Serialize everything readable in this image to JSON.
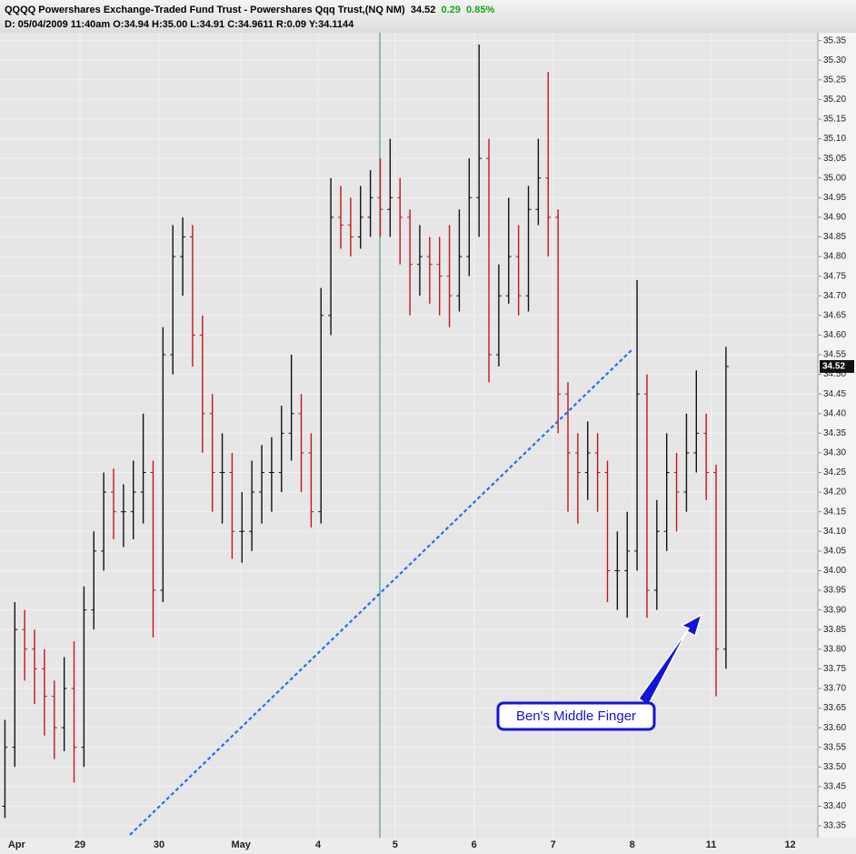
{
  "chart_data": {
    "type": "ohlc",
    "header": {
      "title": "QQQQ Powershares Exchange-Traded Fund Trust - Powershares Qqq Trust,(NQ NM)",
      "last": 34.52,
      "change": 0.29,
      "change_pct": "0.85%",
      "details": "D: 05/04/2009 11:40am O:34.94 H:35.00 L:34.91 C:34.9611 R:0.09 Y:34.1144"
    },
    "annotation": "Ben's Middle Finger",
    "up_color": "#111111",
    "down_color": "#c0161c",
    "grid": true,
    "xlim": [
      -0.5,
      82.3
    ],
    "xticks": [
      {
        "value": 0.5,
        "label": "Apr"
      },
      {
        "value": 7.6,
        "label": "29"
      },
      {
        "value": 15.6,
        "label": "30"
      },
      {
        "value": 23.9,
        "label": "May"
      },
      {
        "value": 31.7,
        "label": "4"
      },
      {
        "value": 39.5,
        "label": "5"
      },
      {
        "value": 47.5,
        "label": "6"
      },
      {
        "value": 55.5,
        "label": "7"
      },
      {
        "value": 63.5,
        "label": "8"
      },
      {
        "value": 71.5,
        "label": "11"
      },
      {
        "value": 79.5,
        "label": "12"
      }
    ],
    "ylim": [
      33.32,
      35.37
    ],
    "yticks": [
      33.35,
      {
        "value": 33.4,
        "label": "33.40"
      },
      33.45,
      {
        "value": 33.5,
        "label": "33.50"
      },
      33.55,
      {
        "value": 33.6,
        "label": "33.60"
      },
      33.65,
      {
        "value": 33.7,
        "label": "33.70"
      },
      33.75,
      {
        "value": 33.8,
        "label": "33.80"
      },
      33.85,
      {
        "value": 33.9,
        "label": "33.90"
      },
      33.95,
      {
        "value": 34,
        "label": "34.00"
      },
      34.05,
      {
        "value": 34.1,
        "label": "34.10"
      },
      34.15,
      {
        "value": 34.2,
        "label": "34.20"
      },
      34.25,
      {
        "value": 34.3,
        "label": "34.30"
      },
      34.35,
      {
        "value": 34.4,
        "label": "34.40"
      },
      34.45,
      {
        "value": 34.5,
        "label": "34.50"
      },
      34.55,
      {
        "value": 34.6,
        "label": "34.60"
      },
      34.65,
      {
        "value": 34.7,
        "label": "34.70"
      },
      34.75,
      {
        "value": 34.8,
        "label": "34.80"
      },
      34.85,
      {
        "value": 34.9,
        "label": "34.90"
      },
      34.95,
      {
        "value": 35,
        "label": "35.00"
      },
      35.05,
      {
        "value": 35.1,
        "label": "35.10"
      },
      35.15,
      {
        "value": 35.2,
        "label": "35.20"
      },
      35.25,
      {
        "value": 35.3,
        "label": "35.30"
      },
      35.35
    ],
    "open": [
      33.4,
      33.55,
      33.85,
      33.8,
      33.75,
      33.68,
      33.6,
      33.7,
      33.55,
      33.9,
      34.05,
      34.2,
      34.15,
      34.15,
      34.2,
      34.25,
      33.95,
      34.55,
      34.8,
      34.85,
      34.6,
      34.4,
      34.25,
      34.25,
      34.1,
      34.1,
      34.2,
      34.25,
      34.25,
      34.35,
      34.4,
      34.3,
      34.15,
      34.65,
      34.9,
      34.88,
      34.85,
      34.9,
      34.95,
      34.92,
      34.95,
      34.9,
      34.78,
      34.8,
      34.78,
      34.75,
      34.7,
      34.8,
      34.95,
      35.05,
      34.55,
      34.7,
      34.8,
      34.7,
      34.92,
      35.0,
      34.9,
      34.45,
      34.3,
      34.25,
      34.3,
      34.25,
      34.0,
      34.0,
      34.05,
      34.45,
      33.95,
      34.1,
      34.25,
      34.2,
      34.3,
      34.35,
      34.25,
      33.8
    ],
    "high": [
      33.62,
      33.92,
      33.9,
      33.85,
      33.8,
      33.72,
      33.78,
      33.82,
      33.96,
      34.1,
      34.25,
      34.26,
      34.22,
      34.28,
      34.4,
      34.28,
      34.62,
      34.88,
      34.9,
      34.88,
      34.65,
      34.45,
      34.35,
      34.3,
      34.2,
      34.28,
      34.32,
      34.34,
      34.42,
      34.55,
      34.45,
      34.35,
      34.72,
      35.0,
      34.98,
      34.95,
      34.98,
      35.02,
      35.05,
      35.1,
      35.0,
      34.92,
      34.88,
      34.85,
      34.85,
      34.88,
      34.92,
      35.05,
      35.34,
      35.1,
      34.78,
      34.95,
      34.88,
      34.98,
      35.1,
      35.27,
      34.92,
      34.48,
      34.35,
      34.38,
      34.35,
      34.28,
      34.1,
      34.15,
      34.74,
      34.5,
      34.18,
      34.35,
      34.3,
      34.4,
      34.51,
      34.4,
      34.27,
      34.57
    ],
    "low": [
      33.37,
      33.5,
      33.72,
      33.66,
      33.58,
      33.52,
      33.54,
      33.46,
      33.5,
      33.85,
      34.0,
      34.08,
      34.06,
      34.08,
      34.12,
      33.83,
      33.92,
      34.5,
      34.7,
      34.52,
      34.3,
      34.15,
      34.12,
      34.03,
      34.02,
      34.05,
      34.12,
      34.15,
      34.2,
      34.28,
      34.2,
      34.11,
      34.12,
      34.6,
      34.82,
      34.8,
      34.82,
      34.85,
      34.85,
      34.85,
      34.78,
      34.65,
      34.7,
      34.68,
      34.65,
      34.62,
      34.66,
      34.75,
      34.85,
      34.48,
      34.52,
      34.68,
      34.65,
      34.66,
      34.88,
      34.8,
      34.35,
      34.15,
      34.12,
      34.18,
      34.15,
      33.92,
      33.9,
      33.88,
      34.0,
      33.88,
      33.9,
      34.05,
      34.1,
      34.15,
      34.25,
      34.18,
      33.68,
      33.75
    ],
    "close": [
      33.55,
      33.85,
      33.8,
      33.75,
      33.68,
      33.6,
      33.7,
      33.55,
      33.9,
      34.05,
      34.2,
      34.15,
      34.15,
      34.2,
      34.25,
      33.95,
      34.55,
      34.8,
      34.85,
      34.6,
      34.4,
      34.25,
      34.25,
      34.1,
      34.1,
      34.2,
      34.25,
      34.25,
      34.35,
      34.4,
      34.3,
      34.15,
      34.65,
      34.9,
      34.88,
      34.85,
      34.9,
      34.95,
      34.92,
      34.95,
      34.9,
      34.78,
      34.8,
      34.78,
      34.75,
      34.7,
      34.8,
      34.95,
      35.05,
      34.55,
      34.7,
      34.8,
      34.7,
      34.92,
      35.0,
      34.9,
      34.45,
      34.3,
      34.25,
      34.3,
      34.25,
      34.0,
      34.0,
      34.05,
      34.45,
      33.95,
      34.1,
      34.25,
      34.2,
      34.3,
      34.35,
      34.25,
      33.8,
      34.52
    ]
  }
}
